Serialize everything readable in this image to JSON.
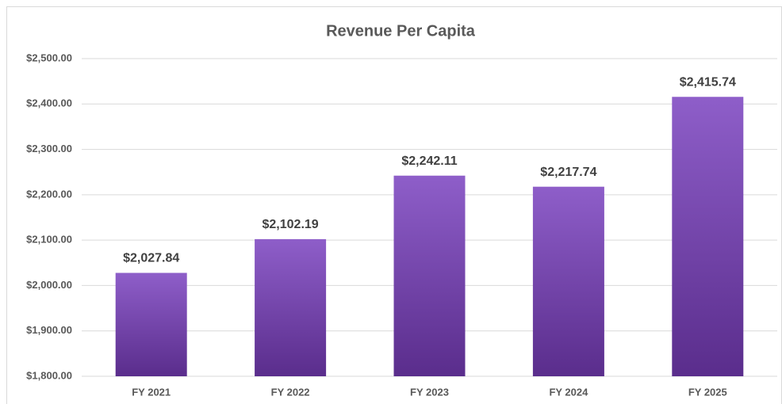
{
  "chart_data": {
    "type": "bar",
    "title": "Revenue Per Capita",
    "categories": [
      "FY 2021",
      "FY 2022",
      "FY 2023",
      "FY 2024",
      "FY 2025"
    ],
    "values": [
      2027.84,
      2102.19,
      2242.11,
      2217.74,
      2415.74
    ],
    "value_labels": [
      "$2,027.84",
      "$2,102.19",
      "$2,242.11",
      "$2,217.74",
      "$2,415.74"
    ],
    "color": "#8e5ec9",
    "ylim": [
      1800,
      2500
    ],
    "yticks": [
      {
        "value": 1800,
        "label": "$1,800.00"
      },
      {
        "value": 1900,
        "label": "$1,900.00"
      },
      {
        "value": 2000,
        "label": "$2,000.00"
      },
      {
        "value": 2100,
        "label": "$2,100.00"
      },
      {
        "value": 2200,
        "label": "$2,200.00"
      },
      {
        "value": 2300,
        "label": "$2,300.00"
      },
      {
        "value": 2400,
        "label": "$2,400.00"
      },
      {
        "value": 2500,
        "label": "$2,500.00"
      }
    ],
    "grid": true
  }
}
